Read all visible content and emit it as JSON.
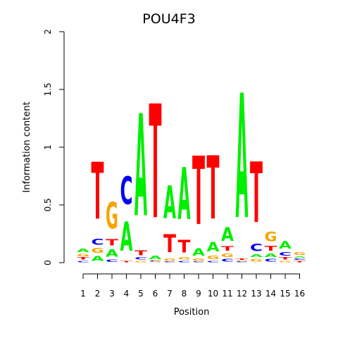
{
  "chart_data": {
    "type": "sequence-logo",
    "title": "POU4F3",
    "xlabel": "Position",
    "ylabel": "Information content",
    "ylim": [
      0,
      2
    ],
    "yticks": [
      "0",
      "0.5",
      "1",
      "1.5",
      "2"
    ],
    "positions": [
      "1",
      "2",
      "3",
      "4",
      "5",
      "6",
      "7",
      "8",
      "9",
      "10",
      "11",
      "12",
      "13",
      "14",
      "15",
      "16"
    ],
    "colors": {
      "A": "#00ee00",
      "C": "#0000ee",
      "G": "#f5a400",
      "T": "#ff0000"
    },
    "stacks": [
      [
        {
          "b": "C",
          "h": 0.02
        },
        {
          "b": "T",
          "h": 0.03
        },
        {
          "b": "G",
          "h": 0.03
        },
        {
          "b": "A",
          "h": 0.05
        }
      ],
      [
        {
          "b": "A",
          "h": 0.07
        },
        {
          "b": "G",
          "h": 0.07
        },
        {
          "b": "C",
          "h": 0.08
        },
        {
          "b": "T",
          "h": 0.79
        }
      ],
      [
        {
          "b": "C",
          "h": 0.03
        },
        {
          "b": "A",
          "h": 0.1
        },
        {
          "b": "T",
          "h": 0.09
        },
        {
          "b": "G",
          "h": 0.37
        }
      ],
      [
        {
          "b": "T",
          "h": 0.02
        },
        {
          "b": "A",
          "h": 0.41
        },
        {
          "b": "C",
          "h": 0.39
        }
      ],
      [
        {
          "b": "G",
          "h": 0.02
        },
        {
          "b": "C",
          "h": 0.03
        },
        {
          "b": "T",
          "h": 0.07
        },
        {
          "b": "A",
          "h": 1.42
        }
      ],
      [
        {
          "b": "G",
          "h": 0.01
        },
        {
          "b": "C",
          "h": 0.01
        },
        {
          "b": "A",
          "h": 0.05
        },
        {
          "b": "T",
          "h": 1.58
        }
      ],
      [
        {
          "b": "C",
          "h": 0.01
        },
        {
          "b": "G",
          "h": 0.03
        },
        {
          "b": "T",
          "h": 0.25
        },
        {
          "b": "A",
          "h": 0.46
        }
      ],
      [
        {
          "b": "C",
          "h": 0.02
        },
        {
          "b": "G",
          "h": 0.03
        },
        {
          "b": "T",
          "h": 0.18
        },
        {
          "b": "A",
          "h": 0.72
        }
      ],
      [
        {
          "b": "C",
          "h": 0.01
        },
        {
          "b": "G",
          "h": 0.03
        },
        {
          "b": "A",
          "h": 0.1
        },
        {
          "b": "T",
          "h": 0.95
        }
      ],
      [
        {
          "b": "C",
          "h": 0.02
        },
        {
          "b": "G",
          "h": 0.05
        },
        {
          "b": "A",
          "h": 0.13
        },
        {
          "b": "T",
          "h": 0.88
        }
      ],
      [
        {
          "b": "C",
          "h": 0.04
        },
        {
          "b": "G",
          "h": 0.05
        },
        {
          "b": "T",
          "h": 0.06
        },
        {
          "b": "A",
          "h": 0.19
        }
      ],
      [
        {
          "b": "C",
          "h": 0.01
        },
        {
          "b": "G",
          "h": 0.01
        },
        {
          "b": "T",
          "h": 0.02
        },
        {
          "b": "A",
          "h": 1.73
        }
      ],
      [
        {
          "b": "G",
          "h": 0.04
        },
        {
          "b": "A",
          "h": 0.04
        },
        {
          "b": "C",
          "h": 0.1
        },
        {
          "b": "T",
          "h": 0.84
        }
      ],
      [
        {
          "b": "C",
          "h": 0.04
        },
        {
          "b": "A",
          "h": 0.05
        },
        {
          "b": "T",
          "h": 0.07
        },
        {
          "b": "G",
          "h": 0.13
        }
      ],
      [
        {
          "b": "G",
          "h": 0.02
        },
        {
          "b": "T",
          "h": 0.03
        },
        {
          "b": "C",
          "h": 0.05
        },
        {
          "b": "A",
          "h": 0.1
        }
      ],
      [
        {
          "b": "T",
          "h": 0.02
        },
        {
          "b": "C",
          "h": 0.02
        },
        {
          "b": "A",
          "h": 0.02
        },
        {
          "b": "G",
          "h": 0.04
        }
      ]
    ]
  }
}
